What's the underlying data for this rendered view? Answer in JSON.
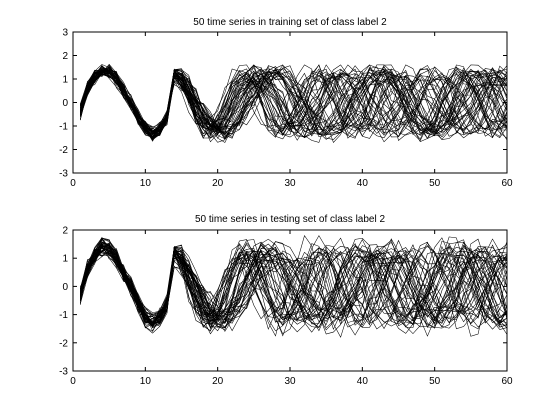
{
  "chart_data": [
    {
      "type": "line",
      "title": "50 time series in training set of class label 2",
      "xlabel": "",
      "ylabel": "",
      "xlim": [
        0,
        60
      ],
      "ylim": [
        -3,
        3
      ],
      "xticks": [
        "0",
        "10",
        "20",
        "30",
        "40",
        "50",
        "60"
      ],
      "yticks": [
        "-3",
        "-2",
        "-1",
        "0",
        "1",
        "2",
        "3"
      ],
      "x": [
        1,
        2,
        3,
        4,
        5,
        6,
        7,
        8,
        9,
        10,
        11,
        12,
        13,
        14,
        15,
        16,
        17,
        18,
        19,
        20,
        21,
        22,
        23,
        24,
        25,
        26,
        27,
        28,
        29,
        30,
        31,
        32,
        33,
        34,
        35,
        36,
        37,
        38,
        39,
        40,
        41,
        42,
        43,
        44,
        45,
        46,
        47,
        48,
        49,
        50,
        51,
        52,
        53,
        54,
        55,
        56,
        57,
        58,
        59,
        60
      ],
      "series_count": 50,
      "mean": [
        -0.4,
        0.6,
        1.1,
        1.3,
        1.3,
        1.0,
        0.5,
        0.0,
        -0.6,
        -1.1,
        -1.3,
        -1.1,
        -0.6,
        0.0,
        0.5,
        0.8,
        0.8,
        0.6,
        0.4,
        0.2,
        0.1,
        0.0,
        0.0,
        0.1,
        0.1,
        0.1,
        0.1,
        0.0,
        0.0,
        0.0,
        0.1,
        0.1,
        0.1,
        0.0,
        0.0,
        0.0,
        0.0,
        0.1,
        0.1,
        0.1,
        0.0,
        0.0,
        0.0,
        0.0,
        0.0,
        0.1,
        0.1,
        0.0,
        0.0,
        0.0,
        0.0,
        0.0,
        0.1,
        0.1,
        0.0,
        0.0,
        0.0,
        0.0,
        0.0,
        0.0
      ],
      "range_min": [
        -1.0,
        0.0,
        0.4,
        0.7,
        0.8,
        0.5,
        -0.2,
        -0.9,
        -1.5,
        -1.8,
        -1.9,
        -1.8,
        -1.6,
        -1.4,
        -1.4,
        -1.5,
        -1.6,
        -1.6,
        -1.7,
        -1.7,
        -1.7,
        -1.7,
        -1.7,
        -1.7,
        -1.7,
        -1.7,
        -1.7,
        -1.7,
        -1.7,
        -1.7,
        -1.7,
        -1.7,
        -1.7,
        -1.7,
        -1.7,
        -1.7,
        -1.7,
        -1.7,
        -1.7,
        -1.7,
        -1.7,
        -1.7,
        -1.7,
        -1.7,
        -1.7,
        -1.7,
        -1.7,
        -1.7,
        -1.7,
        -1.7,
        -1.7,
        -1.7,
        -1.7,
        -1.7,
        -1.7,
        -1.7,
        -1.7,
        -1.7,
        -1.7,
        -2.0
      ],
      "range_max": [
        0.3,
        1.2,
        1.6,
        1.8,
        1.8,
        1.6,
        1.3,
        1.0,
        0.6,
        0.2,
        -0.2,
        0.2,
        0.9,
        1.4,
        1.6,
        1.7,
        1.7,
        1.7,
        1.6,
        1.6,
        1.6,
        1.6,
        1.6,
        1.6,
        1.6,
        1.6,
        1.6,
        1.6,
        1.6,
        1.6,
        1.6,
        1.6,
        1.6,
        1.6,
        1.6,
        1.6,
        1.6,
        1.6,
        1.6,
        1.6,
        1.6,
        1.6,
        1.6,
        1.6,
        1.6,
        1.6,
        1.6,
        1.6,
        1.6,
        1.6,
        1.6,
        1.6,
        1.6,
        1.6,
        1.6,
        1.6,
        1.6,
        1.6,
        1.6,
        1.6
      ]
    },
    {
      "type": "line",
      "title": "50 time series in testing set of class label 2",
      "xlabel": "",
      "ylabel": "",
      "xlim": [
        0,
        60
      ],
      "ylim": [
        -3,
        2
      ],
      "xticks": [
        "0",
        "10",
        "20",
        "30",
        "40",
        "50",
        "60"
      ],
      "yticks": [
        "-3",
        "-2",
        "-1",
        "0",
        "1",
        "2"
      ],
      "x": [
        1,
        2,
        3,
        4,
        5,
        6,
        7,
        8,
        9,
        10,
        11,
        12,
        13,
        14,
        15,
        16,
        17,
        18,
        19,
        20,
        21,
        22,
        23,
        24,
        25,
        26,
        27,
        28,
        29,
        30,
        31,
        32,
        33,
        34,
        35,
        36,
        37,
        38,
        39,
        40,
        41,
        42,
        43,
        44,
        45,
        46,
        47,
        48,
        49,
        50,
        51,
        52,
        53,
        54,
        55,
        56,
        57,
        58,
        59,
        60
      ],
      "series_count": 50,
      "mean": [
        -0.3,
        0.6,
        1.1,
        1.4,
        1.3,
        1.0,
        0.5,
        0.0,
        -0.6,
        -1.1,
        -1.3,
        -1.1,
        -0.6,
        0.0,
        0.5,
        0.8,
        0.8,
        0.6,
        0.4,
        0.2,
        0.1,
        0.0,
        0.0,
        0.1,
        0.1,
        0.1,
        0.1,
        0.0,
        0.0,
        0.0,
        0.1,
        0.1,
        0.1,
        0.0,
        0.0,
        0.0,
        0.0,
        0.1,
        0.1,
        0.1,
        0.0,
        0.0,
        0.0,
        0.0,
        0.0,
        0.1,
        0.1,
        0.0,
        0.0,
        0.0,
        0.0,
        0.0,
        0.1,
        0.1,
        0.0,
        0.0,
        0.0,
        0.0,
        0.0,
        0.0
      ],
      "range_min": [
        -1.0,
        0.0,
        0.4,
        0.7,
        0.8,
        0.5,
        -0.2,
        -0.9,
        -1.5,
        -1.9,
        -2.1,
        -1.9,
        -1.7,
        -1.5,
        -1.5,
        -1.6,
        -1.7,
        -1.7,
        -1.8,
        -1.8,
        -1.8,
        -1.8,
        -1.8,
        -1.8,
        -1.8,
        -1.8,
        -1.8,
        -1.8,
        -1.8,
        -1.8,
        -1.8,
        -1.8,
        -1.8,
        -1.8,
        -1.8,
        -1.8,
        -1.8,
        -1.8,
        -1.8,
        -1.8,
        -1.8,
        -1.8,
        -1.8,
        -1.8,
        -1.8,
        -1.8,
        -1.8,
        -1.8,
        -1.8,
        -1.8,
        -1.8,
        -1.8,
        -1.8,
        -1.8,
        -1.8,
        -1.8,
        -1.8,
        -1.8,
        -1.8,
        -2.0
      ],
      "range_max": [
        0.3,
        1.2,
        1.7,
        1.9,
        1.9,
        1.7,
        1.4,
        1.0,
        0.6,
        0.2,
        -0.2,
        0.2,
        0.9,
        1.4,
        1.7,
        1.8,
        1.8,
        1.8,
        1.8,
        1.8,
        1.8,
        1.8,
        1.8,
        1.8,
        1.8,
        1.8,
        1.8,
        1.8,
        1.8,
        1.8,
        1.8,
        1.8,
        1.8,
        1.8,
        1.8,
        1.8,
        1.8,
        1.8,
        1.8,
        1.8,
        1.8,
        1.8,
        1.8,
        1.8,
        1.8,
        1.8,
        1.8,
        1.8,
        1.8,
        1.8,
        1.8,
        1.8,
        1.8,
        1.8,
        1.8,
        1.8,
        1.8,
        1.8,
        1.8,
        1.8
      ]
    }
  ],
  "colors": {
    "line": "#000000",
    "axes": "#000000",
    "background": "#ffffff"
  }
}
